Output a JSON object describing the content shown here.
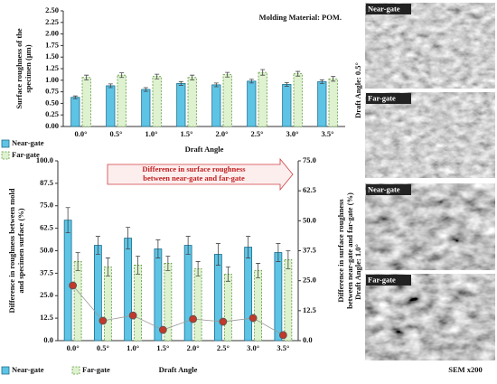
{
  "chart_data": [
    {
      "type": "bar",
      "annotation": "Molding Material: POM.",
      "ylabel": [
        "Surface roughness of the",
        "specimen (μm)"
      ],
      "xlabel": "Draft Angle",
      "categories": [
        "0.0°",
        "0.5°",
        "1.0°",
        "1.5°",
        "2.0°",
        "2.5°",
        "3.0°",
        "3.5°"
      ],
      "ylim": [
        0,
        2.5
      ],
      "yticks": [
        {
          "value": 0,
          "label": "0.00"
        },
        {
          "value": 0.25,
          "label": "0.25"
        },
        {
          "value": 0.5,
          "label": "0.50"
        },
        {
          "value": 0.75,
          "label": "0.75"
        },
        {
          "value": 1,
          "label": "1.00"
        },
        {
          "value": 1.25,
          "label": "1.25"
        },
        {
          "value": 1.5,
          "label": "1.50"
        },
        {
          "value": 1.75,
          "label": "1.75"
        },
        {
          "value": 2,
          "label": "2.00"
        },
        {
          "value": 2.25,
          "label": "2.25"
        },
        {
          "value": 2.5,
          "label": "2.50"
        }
      ],
      "series": [
        {
          "name": "Near-gate",
          "color": "#5ec4e6",
          "values": [
            0.63,
            0.88,
            0.8,
            0.93,
            0.9,
            0.98,
            0.91,
            0.97
          ],
          "errors": [
            0.03,
            0.04,
            0.04,
            0.04,
            0.04,
            0.04,
            0.04,
            0.04
          ]
        },
        {
          "name": "Far-gate",
          "color": "#dff2d0",
          "values": [
            1.06,
            1.11,
            1.08,
            1.06,
            1.12,
            1.17,
            1.14,
            1.03
          ],
          "errors": [
            0.05,
            0.05,
            0.05,
            0.05,
            0.05,
            0.06,
            0.05,
            0.05
          ]
        }
      ]
    },
    {
      "type": "bar",
      "annotation": [
        "Difference in surface roughness",
        "between near-gate and far-gate"
      ],
      "ylabel": [
        "Difference in roughness between mold",
        "and specimen surface (%)"
      ],
      "y2label": [
        "Difference in surface roughness",
        "between near-gate and far-gate (%)"
      ],
      "xlabel": "Draft Angle",
      "categories": [
        "0.0°",
        "0.5°",
        "1.0°",
        "1.5°",
        "2.0°",
        "2.5°",
        "3.0°",
        "3.5°"
      ],
      "ylim": [
        0,
        100
      ],
      "yticks": [
        {
          "value": 0,
          "label": "0.0"
        },
        12.5,
        {
          "value": 25,
          "label": "25.0"
        },
        37.5,
        {
          "value": 50,
          "label": "50.0"
        },
        62.5,
        {
          "value": 75,
          "label": "75.0"
        },
        87.5,
        {
          "value": 100,
          "label": "100.0"
        }
      ],
      "y2lim": [
        0,
        75
      ],
      "y2ticks": [
        {
          "value": 0,
          "label": "0.0"
        },
        12.5,
        {
          "value": 25,
          "label": "25.0"
        },
        37.5,
        {
          "value": 50,
          "label": "50.0"
        },
        62.5,
        {
          "value": 75,
          "label": "75.0"
        }
      ],
      "series": [
        {
          "name": "Near-gate",
          "color": "#5ec4e6",
          "values": [
            67,
            53,
            57,
            51,
            53,
            48,
            52,
            49
          ],
          "errors": [
            7,
            5,
            6,
            5,
            5,
            6,
            6,
            5
          ]
        },
        {
          "name": "Far-gate",
          "color": "#dff2d0",
          "values": [
            44,
            41,
            42,
            43,
            40,
            37,
            39,
            45
          ],
          "errors": [
            5,
            5,
            5,
            4,
            4,
            4,
            4,
            5
          ]
        },
        {
          "type": "line",
          "axis": "y2",
          "color": "#c0392b",
          "values": [
            23,
            8.3,
            10.5,
            4.5,
            9,
            7.9,
            9.4,
            2.3
          ]
        }
      ]
    }
  ],
  "sem": {
    "groups": [
      {
        "angle": "Draft Angle: 0.5°",
        "panels": [
          "Near-gate",
          "Far-gate"
        ]
      },
      {
        "angle": "Draft Angle: 1.0°",
        "panels": [
          "Near-gate",
          "Far-gate"
        ]
      }
    ],
    "caption": "SEM x200"
  }
}
